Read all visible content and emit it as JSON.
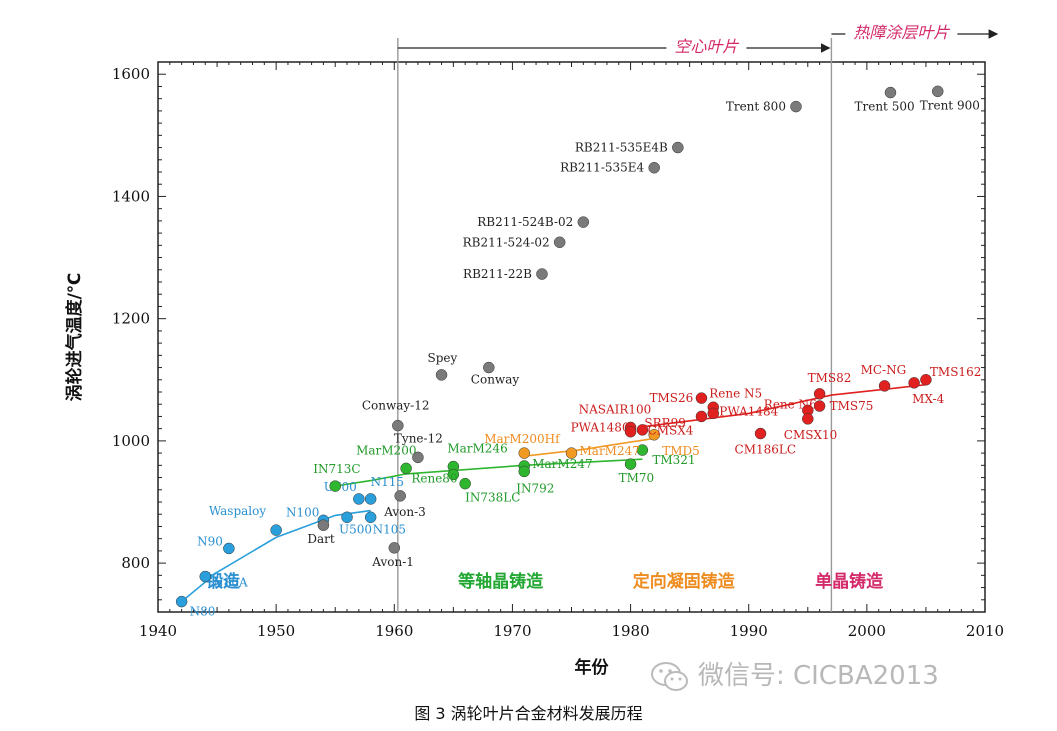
{
  "chart_data": {
    "type": "scatter",
    "xlabel": "年份",
    "ylabel": "涡轮进气温度/℃",
    "xlim": [
      1940,
      2010
    ],
    "ylim": [
      720,
      1620
    ],
    "x_ticks": [
      1940,
      1950,
      1960,
      1970,
      1980,
      1990,
      2000,
      2010
    ],
    "y_ticks": [
      800,
      1000,
      1200,
      1400,
      1600
    ],
    "eras": [
      {
        "label": "锻造",
        "color": "#2a8fd0",
        "x": 1945.5
      },
      {
        "label": "等轴晶铸造",
        "color": "#22a832",
        "x": 1969
      },
      {
        "label": "定向凝固铸造",
        "color": "#ef8c1f",
        "x": 1984.5
      },
      {
        "label": "单晶铸造",
        "color": "#d42a6a",
        "x": 1998.5
      }
    ],
    "periods": [
      {
        "label": "空心叶片",
        "start": 1960.3
      },
      {
        "label": "热障涂层叶片",
        "start": 1997
      }
    ],
    "series": [
      {
        "color": "#2a9fdc",
        "points": [
          {
            "label": "N80",
            "x": 1942,
            "y": 737
          },
          {
            "label": "N80A",
            "x": 1944,
            "y": 778
          },
          {
            "label": "N90",
            "x": 1946,
            "y": 824
          },
          {
            "label": "Waspaloy",
            "x": 1950,
            "y": 854
          },
          {
            "label": "N100",
            "x": 1954,
            "y": 870
          },
          {
            "label": "U500",
            "x": 1956,
            "y": 875
          },
          {
            "label": "N105",
            "x": 1958,
            "y": 875
          },
          {
            "label": "U700",
            "x": 1957,
            "y": 905
          },
          {
            "label": "N115",
            "x": 1958,
            "y": 905
          }
        ]
      },
      {
        "color": "#2fb62f",
        "points": [
          {
            "label": "IN713C",
            "x": 1955,
            "y": 926
          },
          {
            "label": "MarM200",
            "x": 1961,
            "y": 955
          },
          {
            "label": "MarM246",
            "x": 1965,
            "y": 958
          },
          {
            "label": "Rene80",
            "x": 1965,
            "y": 945
          },
          {
            "label": "IN738LC",
            "x": 1966,
            "y": 930
          },
          {
            "label": "MarM247",
            "x": 1971,
            "y": 959
          },
          {
            "label": "IN792",
            "x": 1971,
            "y": 950
          },
          {
            "label": "TM70",
            "x": 1980,
            "y": 962
          },
          {
            "label": "TM321",
            "x": 1981,
            "y": 985
          }
        ]
      },
      {
        "color": "#f09a24",
        "points": [
          {
            "label": "MarM200Hf",
            "x": 1971,
            "y": 980
          },
          {
            "label": "MarM247",
            "x": 1975,
            "y": 980
          },
          {
            "label": "TMD5",
            "x": 1982,
            "y": 1010
          }
        ]
      },
      {
        "color": "#e0211f",
        "points": [
          {
            "label": "NASAIR100",
            "x": 1980,
            "y": 1022
          },
          {
            "label": "PWA1480",
            "x": 1980,
            "y": 1015
          },
          {
            "label": "SRR99",
            "x": 1981,
            "y": 1018
          },
          {
            "label": "TMS26",
            "x": 1986,
            "y": 1070
          },
          {
            "label": "Rene N5",
            "x": 1987,
            "y": 1055
          },
          {
            "label": "PWA1484",
            "x": 1987,
            "y": 1045
          },
          {
            "label": "CMSX4",
            "x": 1986,
            "y": 1040
          },
          {
            "label": "CM186LC",
            "x": 1991,
            "y": 1012
          },
          {
            "label": "Rene N6",
            "x": 1995,
            "y": 1050
          },
          {
            "label": "CMSX10",
            "x": 1995,
            "y": 1036
          },
          {
            "label": "TMS82",
            "x": 1996,
            "y": 1077
          },
          {
            "label": "TMS75",
            "x": 1996,
            "y": 1057
          },
          {
            "label": "MC-NG",
            "x": 2001.5,
            "y": 1090
          },
          {
            "label": "MX-4",
            "x": 2004,
            "y": 1095
          },
          {
            "label": "TMS162",
            "x": 2005,
            "y": 1100
          }
        ]
      },
      {
        "color": "#7a7a7a",
        "points": [
          {
            "label": "Dart",
            "x": 1954,
            "y": 862
          },
          {
            "label": "Avon-1",
            "x": 1960,
            "y": 825
          },
          {
            "label": "Avon-3",
            "x": 1960.5,
            "y": 910
          },
          {
            "label": "Tyne-12",
            "x": 1962,
            "y": 973
          },
          {
            "label": "Conway-12",
            "x": 1960.3,
            "y": 1025
          },
          {
            "label": "Spey",
            "x": 1964,
            "y": 1108
          },
          {
            "label": "Conway",
            "x": 1968,
            "y": 1120
          },
          {
            "label": "RB211-22B",
            "x": 1972.5,
            "y": 1273
          },
          {
            "label": "RB211-524-02",
            "x": 1974,
            "y": 1325
          },
          {
            "label": "RB211-524B-02",
            "x": 1976,
            "y": 1358
          },
          {
            "label": "RB211-535E4",
            "x": 1982,
            "y": 1447
          },
          {
            "label": "RB211-535E4B",
            "x": 1984,
            "y": 1480
          },
          {
            "label": "Trent 800",
            "x": 1994,
            "y": 1547
          },
          {
            "label": "Trent 500",
            "x": 2002,
            "y": 1570
          },
          {
            "label": "Trent 900",
            "x": 2006,
            "y": 1572
          }
        ]
      }
    ]
  },
  "caption": "图 3  涡轮叶片合金材料发展历程",
  "watermark": "微信号: CICBA2013"
}
